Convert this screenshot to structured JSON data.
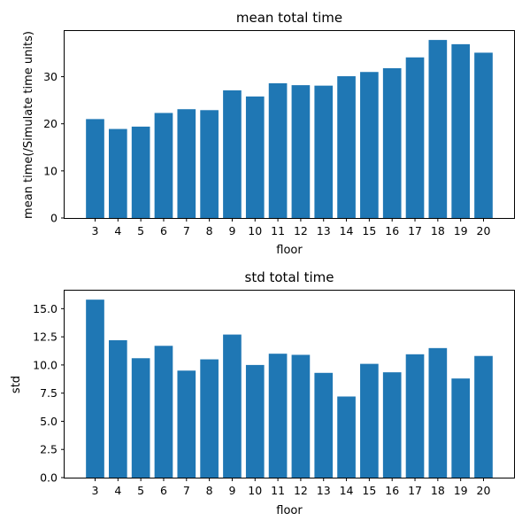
{
  "chart_data": [
    {
      "type": "bar",
      "title": "mean total time",
      "xlabel": "floor",
      "ylabel": "mean time(/Simulate time units)",
      "categories": [
        "3",
        "4",
        "5",
        "6",
        "7",
        "8",
        "9",
        "10",
        "11",
        "12",
        "13",
        "14",
        "15",
        "16",
        "17",
        "18",
        "19",
        "20"
      ],
      "values": [
        21.0,
        18.9,
        19.4,
        22.3,
        23.1,
        22.9,
        27.1,
        25.8,
        28.6,
        28.2,
        28.1,
        30.1,
        31.0,
        31.8,
        34.1,
        37.8,
        36.9,
        35.1
      ],
      "yticks": [
        0,
        10,
        20,
        30
      ],
      "ytick_labels": [
        "0",
        "10",
        "20",
        "30"
      ],
      "ylim": [
        0,
        39.7
      ],
      "grid": false,
      "color": "#1f77b4"
    },
    {
      "type": "bar",
      "title": "std total time",
      "xlabel": "floor",
      "ylabel": "std",
      "categories": [
        "3",
        "4",
        "5",
        "6",
        "7",
        "8",
        "9",
        "10",
        "11",
        "12",
        "13",
        "14",
        "15",
        "16",
        "17",
        "18",
        "19",
        "20"
      ],
      "values": [
        15.8,
        12.2,
        10.6,
        11.7,
        9.5,
        10.5,
        12.7,
        10.0,
        11.0,
        10.9,
        9.3,
        7.2,
        10.1,
        9.35,
        10.95,
        11.5,
        8.8,
        10.8
      ],
      "yticks": [
        0,
        2.5,
        5,
        7.5,
        10,
        12.5,
        15
      ],
      "ytick_labels": [
        "0.0",
        "2.5",
        "5.0",
        "7.5",
        "10.0",
        "12.5",
        "15.0"
      ],
      "ylim": [
        0,
        16.6
      ],
      "grid": false,
      "color": "#1f77b4"
    }
  ]
}
